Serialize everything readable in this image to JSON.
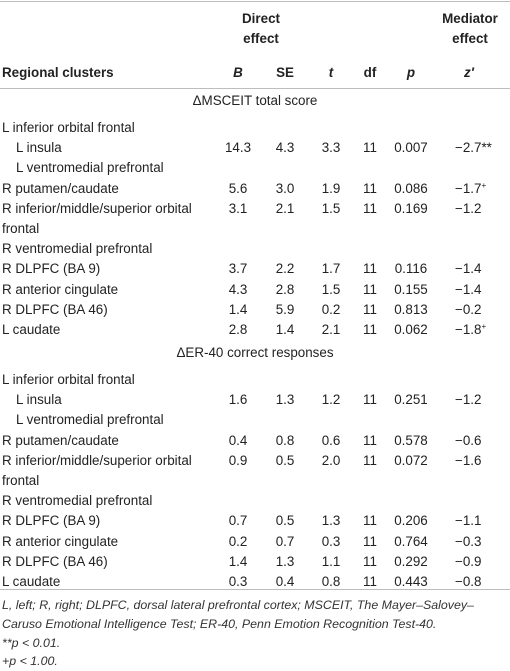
{
  "headers": {
    "direct_effect": [
      "Direct",
      "effect"
    ],
    "mediator_effect": [
      "Mediator",
      "effect"
    ],
    "regional_clusters": "Regional clusters",
    "B": "B",
    "SE": "SE",
    "t": "t",
    "df": "df",
    "p": "p",
    "z": "z′"
  },
  "sections": [
    {
      "title": "ΔMSCEIT total score",
      "rows": [
        {
          "label": "L inferior orbital frontal",
          "indent": false,
          "B": "",
          "SE": "",
          "t": "",
          "df": "",
          "p": "",
          "z": "",
          "mark": ""
        },
        {
          "label": "L insula",
          "indent": true,
          "B": "14.3",
          "SE": "4.3",
          "t": "3.3",
          "df": "11",
          "p": "0.007",
          "z": "−2.7",
          "mark": "**"
        },
        {
          "label": "L ventromedial prefrontal",
          "indent": true,
          "B": "",
          "SE": "",
          "t": "",
          "df": "",
          "p": "",
          "z": "",
          "mark": ""
        },
        {
          "label": "R putamen/caudate",
          "indent": false,
          "B": "5.6",
          "SE": "3.0",
          "t": "1.9",
          "df": "11",
          "p": "0.086",
          "z": "−1.7",
          "mark": "+"
        },
        {
          "label": "R inferior/middle/superior orbital",
          "indent": false,
          "B": "3.1",
          "SE": "2.1",
          "t": "1.5",
          "df": "11",
          "p": "0.169",
          "z": "−1.2",
          "mark": ""
        },
        {
          "label": "frontal",
          "indent": false,
          "B": "",
          "SE": "",
          "t": "",
          "df": "",
          "p": "",
          "z": "",
          "mark": ""
        },
        {
          "label": "R ventromedial prefrontal",
          "indent": false,
          "B": "",
          "SE": "",
          "t": "",
          "df": "",
          "p": "",
          "z": "",
          "mark": ""
        },
        {
          "label": "R DLPFC (BA 9)",
          "indent": false,
          "B": "3.7",
          "SE": "2.2",
          "t": "1.7",
          "df": "11",
          "p": "0.116",
          "z": "−1.4",
          "mark": ""
        },
        {
          "label": "R anterior cingulate",
          "indent": false,
          "B": "4.3",
          "SE": "2.8",
          "t": "1.5",
          "df": "11",
          "p": "0.155",
          "z": "−1.4",
          "mark": ""
        },
        {
          "label": "R DLPFC (BA 46)",
          "indent": false,
          "B": "1.4",
          "SE": "5.9",
          "t": "0.2",
          "df": "11",
          "p": "0.813",
          "z": "−0.2",
          "mark": ""
        },
        {
          "label": "L caudate",
          "indent": false,
          "B": "2.8",
          "SE": "1.4",
          "t": "2.1",
          "df": "11",
          "p": "0.062",
          "z": "−1.8",
          "mark": "+"
        }
      ]
    },
    {
      "title": "ΔER-40 correct responses",
      "rows": [
        {
          "label": "L inferior orbital frontal",
          "indent": false,
          "B": "",
          "SE": "",
          "t": "",
          "df": "",
          "p": "",
          "z": "",
          "mark": ""
        },
        {
          "label": "L insula",
          "indent": true,
          "B": "1.6",
          "SE": "1.3",
          "t": "1.2",
          "df": "11",
          "p": "0.251",
          "z": "−1.2",
          "mark": ""
        },
        {
          "label": "L ventromedial prefrontal",
          "indent": true,
          "B": "",
          "SE": "",
          "t": "",
          "df": "",
          "p": "",
          "z": "",
          "mark": ""
        },
        {
          "label": "R putamen/caudate",
          "indent": false,
          "B": "0.4",
          "SE": "0.8",
          "t": "0.6",
          "df": "11",
          "p": "0.578",
          "z": "−0.6",
          "mark": ""
        },
        {
          "label": "R inferior/middle/superior orbital",
          "indent": false,
          "B": "0.9",
          "SE": "0.5",
          "t": "2.0",
          "df": "11",
          "p": "0.072",
          "z": "−1.6",
          "mark": ""
        },
        {
          "label": "frontal",
          "indent": false,
          "B": "",
          "SE": "",
          "t": "",
          "df": "",
          "p": "",
          "z": "",
          "mark": ""
        },
        {
          "label": "R ventromedial prefrontal",
          "indent": false,
          "B": "",
          "SE": "",
          "t": "",
          "df": "",
          "p": "",
          "z": "",
          "mark": ""
        },
        {
          "label": "R DLPFC (BA 9)",
          "indent": false,
          "B": "0.7",
          "SE": "0.5",
          "t": "1.3",
          "df": "11",
          "p": "0.206",
          "z": "−1.1",
          "mark": ""
        },
        {
          "label": "R anterior cingulate",
          "indent": false,
          "B": "0.2",
          "SE": "0.7",
          "t": "0.3",
          "df": "11",
          "p": "0.764",
          "z": "−0.3",
          "mark": ""
        },
        {
          "label": "R DLPFC (BA 46)",
          "indent": false,
          "B": "1.4",
          "SE": "1.3",
          "t": "1.1",
          "df": "11",
          "p": "0.292",
          "z": "−0.9",
          "mark": ""
        },
        {
          "label": "L caudate",
          "indent": false,
          "B": "0.3",
          "SE": "0.4",
          "t": "0.8",
          "df": "11",
          "p": "0.443",
          "z": "−0.8",
          "mark": ""
        }
      ]
    }
  ],
  "footnotes": {
    "abbreviations": "L, left; R, right; DLPFC, dorsal lateral prefrontal cortex; MSCEIT, The Mayer–Salovey–Caruso Emotional Intelligence Test; ER-40, Penn Emotion Recognition Test-40.",
    "note1": "**p < 0.01.",
    "note2": "+p < 1.00."
  }
}
